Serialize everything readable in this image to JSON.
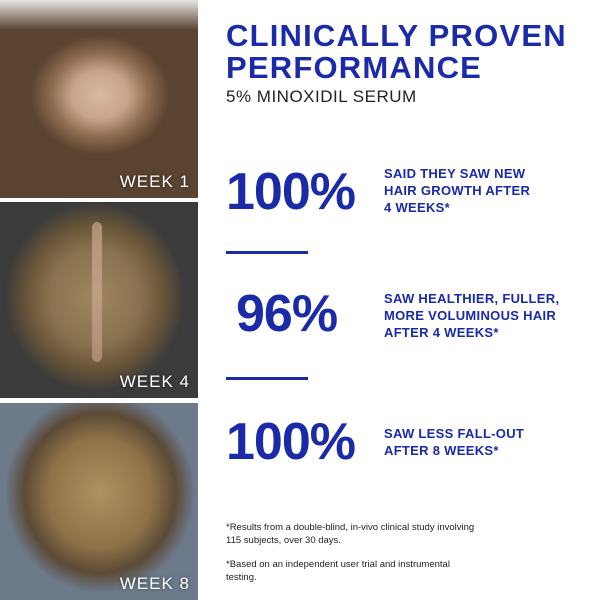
{
  "photos": [
    {
      "label": "WEEK 1"
    },
    {
      "label": "WEEK 4"
    },
    {
      "label": "WEEK 8"
    }
  ],
  "header": {
    "title_line1": "CLINICALLY PROVEN",
    "title_line2": "PERFORMANCE",
    "subtitle": "5% MINOXIDIL SERUM"
  },
  "stats": [
    {
      "value": "100%",
      "desc": [
        "SAID THEY SAW NEW",
        "HAIR GROWTH AFTER",
        "4 WEEKS*"
      ]
    },
    {
      "value": "96%",
      "desc": [
        "SAW HEALTHIER, FULLER,",
        "MORE VOLUMINOUS HAIR",
        "AFTER 4 WEEKS*"
      ]
    },
    {
      "value": "100%",
      "desc": [
        "SAW LESS FALL-OUT",
        "AFTER 8 WEEKS*"
      ]
    }
  ],
  "footnotes": [
    [
      "*Results from a double-blind, in-vivo clinical study involving",
      "115 subjects, over 30 days."
    ],
    [
      "*Based on an independent user trial and instrumental",
      "testing."
    ]
  ],
  "colors": {
    "accent": "#1a2aa8"
  }
}
